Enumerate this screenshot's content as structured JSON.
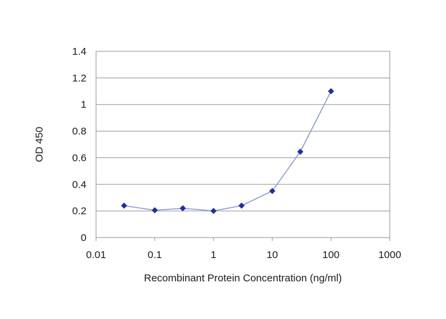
{
  "chart_data": {
    "type": "line",
    "title": "",
    "xlabel": "Recombinant Protein Concentration (ng/ml)",
    "ylabel": "OD 450",
    "x_scale": "log",
    "xlim": [
      0.01,
      1000
    ],
    "ylim": [
      0,
      1.4
    ],
    "x_ticks": [
      0.01,
      0.1,
      1,
      10,
      100,
      1000
    ],
    "x_tick_labels": [
      "0.01",
      "0.1",
      "1",
      "10",
      "100",
      "1000"
    ],
    "y_ticks": [
      0,
      0.2,
      0.4,
      0.6,
      0.8,
      1,
      1.2,
      1.4
    ],
    "y_tick_labels": [
      "0",
      "0.2",
      "0.4",
      "0.6",
      "0.8",
      "1",
      "1.2",
      "1.4"
    ],
    "grid": "horizontal",
    "legend": "none",
    "series": [
      {
        "x": [
          0.03,
          0.1,
          0.3,
          1,
          3,
          10,
          30,
          100
        ],
        "y": [
          0.24,
          0.205,
          0.22,
          0.2,
          0.24,
          0.35,
          0.645,
          1.1
        ],
        "line_color": "#8a96d6",
        "marker_color": "#1f2f9e",
        "marker": "diamond"
      }
    ]
  }
}
